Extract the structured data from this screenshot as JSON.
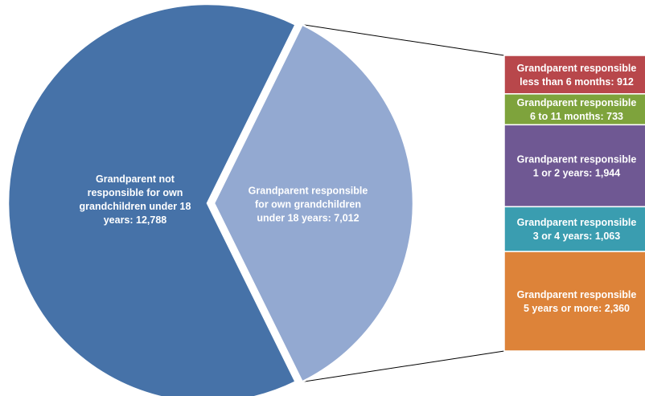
{
  "chart_data": {
    "type": "bar-of-pie",
    "pie": {
      "slices": [
        {
          "name": "Grandparent not responsible for own grandchildren under 18 years",
          "value": 12788,
          "label_lines": [
            "Grandparent not",
            "responsible for own",
            "grandchildren under 18",
            "years: 12,788"
          ],
          "color": "#4672a8"
        },
        {
          "name": "Grandparent responsible for own grandchildren under 18 years",
          "value": 7012,
          "label_lines": [
            "Grandparent responsible",
            "for own grandchildren",
            "under 18 years: 7,012"
          ],
          "color": "#93a9d1"
        }
      ]
    },
    "bar": {
      "segments": [
        {
          "name": "Grandparent responsible less than 6 months",
          "value": 912,
          "label_lines": [
            "Grandparent responsible",
            "less than 6 months: 912"
          ],
          "color": "#b8474b"
        },
        {
          "name": "Grandparent responsible 6 to 11 months",
          "value": 733,
          "label_lines": [
            "Grandparent responsible",
            "6 to 11 months: 733"
          ],
          "color": "#7ea33c"
        },
        {
          "name": "Grandparent responsible 1 or 2 years",
          "value": 1944,
          "label_lines": [
            "Grandparent responsible",
            "1 or 2 years: 1,944"
          ],
          "color": "#6f5893"
        },
        {
          "name": "Grandparent responsible 3 or 4 years",
          "value": 1063,
          "label_lines": [
            "Grandparent responsible",
            "3 or 4 years: 1,063"
          ],
          "color": "#3a9db0"
        },
        {
          "name": "Grandparent responsible 5 years or more",
          "value": 2360,
          "label_lines": [
            "Grandparent responsible",
            "5 years or more: 2,360"
          ],
          "color": "#dd8339"
        }
      ]
    },
    "title": "",
    "legend": "none"
  }
}
